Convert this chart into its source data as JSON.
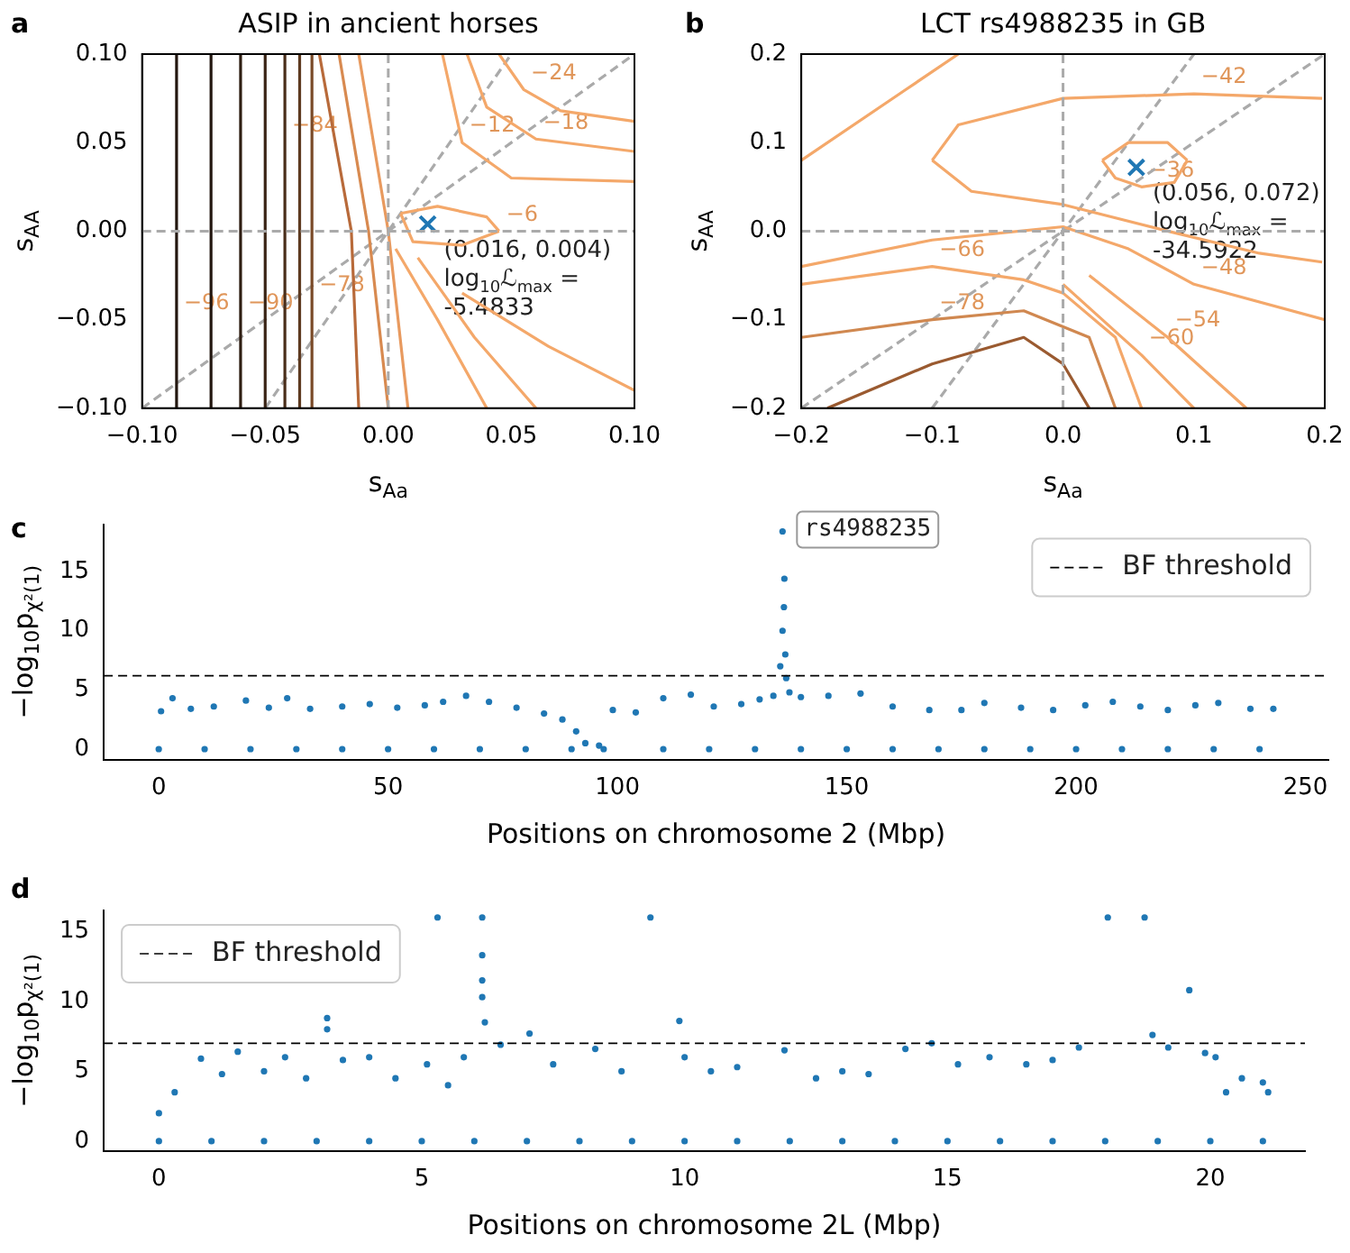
{
  "chart_data": [
    {
      "type": "line",
      "title": "ASIP in ancient horses",
      "xlabel": "s$_{Aa}$",
      "ylabel": "s$_{AA}$",
      "xlim": [
        -0.1,
        0.1
      ],
      "ylim": [
        -0.1,
        0.1
      ],
      "xticks": [
        {
          "value": -0.1,
          "label": "−0.10"
        },
        {
          "value": -0.05,
          "label": "−0.05"
        },
        {
          "value": 0,
          "label": "0.00"
        },
        {
          "value": 0.05,
          "label": "0.05"
        },
        {
          "value": 0.1,
          "label": "0.10"
        }
      ],
      "yticks": [
        {
          "value": -0.1,
          "label": "−0.10"
        },
        {
          "value": -0.05,
          "label": "−0.05"
        },
        {
          "value": 0,
          "label": "0.00"
        },
        {
          "value": 0.05,
          "label": "0.05"
        },
        {
          "value": 0.1,
          "label": "0.10"
        }
      ],
      "ref_lines": [
        {
          "axis": "x",
          "value": 0,
          "color": "#aaaaaa",
          "line_style": "dashed"
        },
        {
          "axis": "y",
          "value": 0,
          "color": "#aaaaaa",
          "line_style": "dashed"
        }
      ],
      "annotations": [
        "a",
        {
          "text": "(0.016, 0.004)\nlog$_{10}$ℒ$_{max}$ =\n-5.4833",
          "x": 0.016,
          "y": 0.004
        },
        {
          "text": "−96",
          "x": -0.086,
          "y": -0.05
        },
        {
          "text": "−90",
          "x": -0.06,
          "y": -0.05
        },
        {
          "text": "−84",
          "x": -0.042,
          "y": 0.05
        },
        {
          "text": "−78",
          "x": -0.031,
          "y": -0.04
        },
        {
          "text": "−24",
          "x": 0.055,
          "y": 0.08
        },
        {
          "text": "−18",
          "x": 0.06,
          "y": 0.052
        },
        {
          "text": "−12",
          "x": 0.03,
          "y": 0.05
        },
        {
          "text": "−6",
          "x": 0.045,
          "y": 0
        }
      ],
      "series": [
        {
          "color": "#231710",
          "x": [
            -0.086,
            -0.086
          ],
          "values": [
            -0.1,
            0.1
          ]
        },
        {
          "color": "#231710",
          "x": [
            -0.072,
            -0.072
          ],
          "values": [
            -0.1,
            0.1
          ]
        },
        {
          "color": "#2e1d12",
          "x": [
            -0.06,
            -0.06
          ],
          "values": [
            -0.1,
            0.1
          ]
        },
        {
          "color": "#3a2415",
          "x": [
            -0.05,
            -0.05
          ],
          "values": [
            -0.1,
            0.1
          ]
        },
        {
          "color": "#4a2e1a",
          "x": [
            -0.042,
            -0.042
          ],
          "values": [
            -0.1,
            0.1
          ]
        },
        {
          "color": "#5e3a20",
          "x": [
            -0.036,
            -0.036
          ],
          "values": [
            -0.1,
            0.1
          ]
        },
        {
          "color": "#7a4a28",
          "x": [
            -0.031,
            -0.031
          ],
          "values": [
            -0.1,
            0.1
          ]
        },
        {
          "color": "#b86a3a",
          "x": [
            -0.028,
            -0.015,
            -0.012
          ],
          "values": [
            0.1,
            0,
            -0.1
          ]
        },
        {
          "color": "#d88a50",
          "x": [
            -0.02,
            -0.008,
            0
          ],
          "values": [
            0.1,
            0,
            -0.1
          ]
        },
        {
          "color": "#e89a5f",
          "x": [
            -0.012,
            0,
            0.008
          ],
          "values": [
            0.1,
            0,
            -0.1
          ]
        },
        {
          "color": "#f4a86a",
          "x": [
            0.045,
            0.055,
            0.07,
            0.1
          ],
          "values": [
            0.1,
            0.08,
            0.068,
            0.062
          ]
        },
        {
          "color": "#f4a86a",
          "x": [
            0.032,
            0.04,
            0.06,
            0.1
          ],
          "values": [
            0.1,
            0.07,
            0.052,
            0.045
          ]
        },
        {
          "color": "#f4a86a",
          "x": [
            0.022,
            0.03,
            0.05,
            0.1
          ],
          "values": [
            0.1,
            0.05,
            0.03,
            0.028
          ]
        },
        {
          "color": "#f4a86a",
          "x": [
            0.005,
            0.02,
            0.04,
            0.045
          ],
          "values": [
            0.01,
            0.014,
            0.008,
            0
          ]
        },
        {
          "color": "#f4a86a",
          "x": [
            0.005,
            0.01,
            0.03,
            0.045
          ],
          "values": [
            0.01,
            -0.006,
            -0.008,
            0
          ]
        },
        {
          "color": "#f4a86a",
          "x": [
            0.003,
            0.02,
            0.04
          ],
          "values": [
            -0.01,
            -0.05,
            -0.1
          ]
        },
        {
          "color": "#f4a86a",
          "x": [
            0.012,
            0.035,
            0.06
          ],
          "values": [
            -0.015,
            -0.06,
            -0.1
          ]
        },
        {
          "color": "#f4a86a",
          "x": [
            0.03,
            0.065,
            0.1
          ],
          "values": [
            -0.035,
            -0.065,
            -0.09
          ]
        },
        {
          "color": "#aaaaaa",
          "line_style": "dashed",
          "x": [
            -0.1,
            0.1
          ],
          "values": [
            -0.1,
            0.1
          ]
        },
        {
          "color": "#aaaaaa",
          "line_style": "dashed",
          "x": [
            -0.05,
            0.05
          ],
          "values": [
            -0.1,
            0.1
          ]
        },
        {
          "type": "scatter",
          "marker": "cross",
          "color": "#1f77b4",
          "x": [
            0.016
          ],
          "values": [
            0.004
          ]
        }
      ]
    },
    {
      "type": "line",
      "title": "LCT rs4988235 in GB",
      "xlabel": "s$_{Aa}$",
      "ylabel": "s$_{AA}$",
      "xlim": [
        -0.2,
        0.2
      ],
      "ylim": [
        -0.2,
        0.2
      ],
      "xticks": [
        {
          "value": -0.2,
          "label": "−0.2"
        },
        {
          "value": -0.1,
          "label": "−0.1"
        },
        {
          "value": 0,
          "label": "0.0"
        },
        {
          "value": 0.1,
          "label": "0.1"
        },
        {
          "value": 0.2,
          "label": "0.2"
        }
      ],
      "yticks": [
        {
          "value": -0.2,
          "label": "−0.2"
        },
        {
          "value": -0.1,
          "label": "−0.1"
        },
        {
          "value": 0,
          "label": "0.0"
        },
        {
          "value": 0.1,
          "label": "0.1"
        },
        {
          "value": 0.2,
          "label": "0.2"
        }
      ],
      "ref_lines": [
        {
          "axis": "x",
          "value": 0,
          "color": "#aaaaaa",
          "line_style": "dashed"
        },
        {
          "axis": "y",
          "value": 0,
          "color": "#aaaaaa",
          "line_style": "dashed"
        }
      ],
      "annotations": [
        "b",
        {
          "text": "(0.056, 0.072)\nlog$_{10}$ℒ$_{max}$ =\n-34.5922",
          "x": 0.056,
          "y": 0.072
        },
        {
          "text": "−42",
          "x": 0.1,
          "y": 0.155
        },
        {
          "text": "−36",
          "x": 0.06,
          "y": 0.05
        },
        {
          "text": "−48",
          "x": 0.1,
          "y": -0.06
        },
        {
          "text": "−54",
          "x": 0.08,
          "y": -0.12
        },
        {
          "text": "−60",
          "x": 0.06,
          "y": -0.14
        },
        {
          "text": "−66",
          "x": -0.1,
          "y": -0.04
        },
        {
          "text": "−78",
          "x": -0.1,
          "y": -0.1
        }
      ],
      "series": [
        {
          "color": "#f4a86a",
          "x": [
            0.03,
            0.05,
            0.08,
            0.095
          ],
          "values": [
            0.08,
            0.1,
            0.1,
            0.08
          ]
        },
        {
          "color": "#f4a86a",
          "x": [
            0.03,
            0.04,
            0.06,
            0.085,
            0.095
          ],
          "values": [
            0.08,
            0.06,
            0.05,
            0.055,
            0.08
          ]
        },
        {
          "color": "#f4a86a",
          "x": [
            -0.1,
            -0.08,
            0,
            0.1,
            0.198
          ],
          "values": [
            0.08,
            0.12,
            0.15,
            0.155,
            0.15
          ]
        },
        {
          "color": "#f4a86a",
          "x": [
            -0.1,
            -0.07,
            0,
            0.08,
            0.15,
            0.198
          ],
          "values": [
            0.08,
            0.045,
            0.03,
            0,
            -0.025,
            -0.035
          ]
        },
        {
          "color": "#f4a86a",
          "x": [
            -0.2,
            -0.12,
            -0.08
          ],
          "values": [
            0.08,
            0.16,
            0.2
          ]
        },
        {
          "color": "#f4a86a",
          "x": [
            -0.2,
            -0.1,
            0,
            0.05,
            0.1,
            0.2
          ],
          "values": [
            -0.04,
            -0.01,
            0.005,
            -0.02,
            -0.06,
            -0.1
          ]
        },
        {
          "color": "#f4a86a",
          "x": [
            0.02,
            0.08,
            0.14
          ],
          "values": [
            -0.05,
            -0.12,
            -0.2
          ]
        },
        {
          "color": "#f4a86a",
          "x": [
            0,
            0.06,
            0.1
          ],
          "values": [
            -0.06,
            -0.14,
            -0.2
          ]
        },
        {
          "color": "#f4a86a",
          "x": [
            -0.2,
            -0.1,
            -0.03,
            0,
            0.04,
            0.06
          ],
          "values": [
            -0.06,
            -0.04,
            -0.055,
            -0.07,
            -0.12,
            -0.2
          ]
        },
        {
          "color": "#d08850",
          "x": [
            -0.2,
            -0.1,
            -0.03,
            0.02,
            0.04
          ],
          "values": [
            -0.12,
            -0.1,
            -0.09,
            -0.12,
            -0.2
          ]
        },
        {
          "color": "#9a5a30",
          "x": [
            -0.18,
            -0.1,
            -0.03,
            0,
            0.02
          ],
          "values": [
            -0.2,
            -0.15,
            -0.12,
            -0.15,
            -0.2
          ]
        },
        {
          "color": "#aaaaaa",
          "line_style": "dashed",
          "x": [
            -0.2,
            0.2
          ],
          "values": [
            -0.2,
            0.2
          ]
        },
        {
          "color": "#aaaaaa",
          "line_style": "dashed",
          "x": [
            -0.1,
            0.1
          ],
          "values": [
            -0.2,
            0.2
          ]
        },
        {
          "type": "scatter",
          "marker": "cross",
          "color": "#1f77b4",
          "x": [
            0.056
          ],
          "values": [
            0.072
          ]
        }
      ]
    },
    {
      "type": "scatter",
      "xlabel": "Positions on chromosome 2 (Mbp)",
      "ylabel": "−log$_{10}$p$_{χ²(1)}$",
      "xlim": [
        -12,
        255
      ],
      "ylim": [
        -0.9,
        19
      ],
      "xticks": [
        0,
        50,
        100,
        150,
        200,
        250
      ],
      "yticks": [
        0,
        5,
        10,
        15
      ],
      "legend": "top right",
      "marker": "circle",
      "ref_lines": [
        {
          "axis": "y",
          "value": 6.2,
          "label": "BF threshold",
          "color": "#000000",
          "line_style": "dashed"
        }
      ],
      "annotations": [
        "c",
        {
          "text": "rs4988235",
          "x": 136,
          "y": 18.4
        }
      ],
      "series": [
        {
          "color": "#1f77b4",
          "x": [
            0,
            10,
            20,
            30,
            40,
            50,
            60,
            70,
            80,
            90,
            97,
            110,
            120,
            130,
            140,
            150,
            160,
            170,
            180,
            190,
            200,
            210,
            220,
            230,
            240,
            0.5,
            3,
            7,
            12,
            19,
            24,
            28,
            33,
            40,
            46,
            52,
            58,
            62,
            67,
            72,
            78,
            84,
            88,
            91,
            93,
            96,
            99,
            104,
            110,
            116,
            121,
            127,
            131,
            134,
            135.5,
            136,
            136.3,
            136.4,
            136.6,
            136.8,
            137.5,
            140,
            146,
            153,
            160,
            168,
            175,
            180,
            188,
            195,
            202,
            208,
            214,
            220,
            226,
            231,
            238,
            243,
            136
          ],
          "values": [
            0,
            0,
            0,
            0,
            0,
            0,
            0,
            0,
            0,
            0,
            0,
            0,
            0,
            0,
            0,
            0,
            0,
            0,
            0,
            0,
            0,
            0,
            0,
            0,
            0,
            3.2,
            4.3,
            3.4,
            3.6,
            4.1,
            3.5,
            4.3,
            3.4,
            3.6,
            3.8,
            3.5,
            3.7,
            4.0,
            4.5,
            4.0,
            3.5,
            3.0,
            2.5,
            1.5,
            0.5,
            0.3,
            3.3,
            3.1,
            4.3,
            4.6,
            3.6,
            3.8,
            4.2,
            4.5,
            7,
            10,
            12,
            14.4,
            8,
            6,
            4.8,
            4.4,
            4.5,
            4.7,
            3.6,
            3.3,
            3.3,
            3.9,
            3.5,
            3.3,
            3.7,
            4.0,
            3.6,
            3.3,
            3.7,
            3.9,
            3.4,
            3.4,
            18.4
          ]
        }
      ]
    },
    {
      "type": "scatter",
      "xlabel": "Positions on chromosome 2L (Mbp)",
      "ylabel": "−log$_{10}$p$_{χ²(1)}$",
      "xlim": [
        -1.05,
        21.8
      ],
      "ylim": [
        -0.7,
        16.5
      ],
      "xticks": [
        0,
        5,
        10,
        15,
        20
      ],
      "yticks": [
        0,
        5,
        10,
        15
      ],
      "legend": "top left",
      "marker": "circle",
      "ref_lines": [
        {
          "axis": "y",
          "value": 7,
          "label": "BF threshold",
          "color": "#000000",
          "line_style": "dashed"
        }
      ],
      "annotations": [
        "d"
      ],
      "series": [
        {
          "color": "#1f77b4",
          "x": [
            0,
            1,
            2,
            3,
            4,
            5,
            6,
            7,
            8,
            9,
            10,
            11,
            12,
            13,
            14,
            15,
            16,
            17,
            18,
            19,
            20,
            21,
            0,
            0.3,
            0.8,
            1.2,
            1.5,
            2,
            2.4,
            2.8,
            3.2,
            3.2,
            3.5,
            4,
            4.5,
            5.1,
            5.3,
            5.5,
            5.8,
            6.15,
            6.15,
            6.15,
            6.15,
            6.2,
            6.5,
            7.05,
            7.5,
            8.3,
            8.8,
            9.35,
            9.9,
            10,
            10.5,
            11,
            11.9,
            12.5,
            13,
            13.5,
            14.2,
            14.7,
            15.2,
            15.8,
            16.5,
            17,
            17.5,
            18.05,
            18.75,
            18.9,
            19.2,
            19.6,
            19.9,
            20.1,
            20.3,
            20.6,
            21,
            21.1
          ],
          "values": [
            0,
            0,
            0,
            0,
            0,
            0,
            0,
            0,
            0,
            0,
            0,
            0,
            0,
            0,
            0,
            0,
            0,
            0,
            0,
            0,
            0,
            0,
            2,
            3.5,
            5.9,
            4.8,
            6.4,
            5,
            6,
            4.5,
            8.8,
            8,
            5.8,
            6,
            4.5,
            5.5,
            16,
            4,
            6,
            16,
            13.3,
            11.5,
            10.3,
            8.5,
            6.9,
            7.7,
            5.5,
            6.6,
            5,
            16,
            8.6,
            6,
            5,
            5.3,
            6.5,
            4.5,
            5,
            4.8,
            6.6,
            7,
            5.5,
            6,
            5.5,
            5.8,
            6.7,
            16,
            16,
            7.6,
            6.7,
            10.8,
            6.3,
            6,
            3.5,
            4.5,
            4.2,
            3.5
          ]
        }
      ]
    }
  ]
}
